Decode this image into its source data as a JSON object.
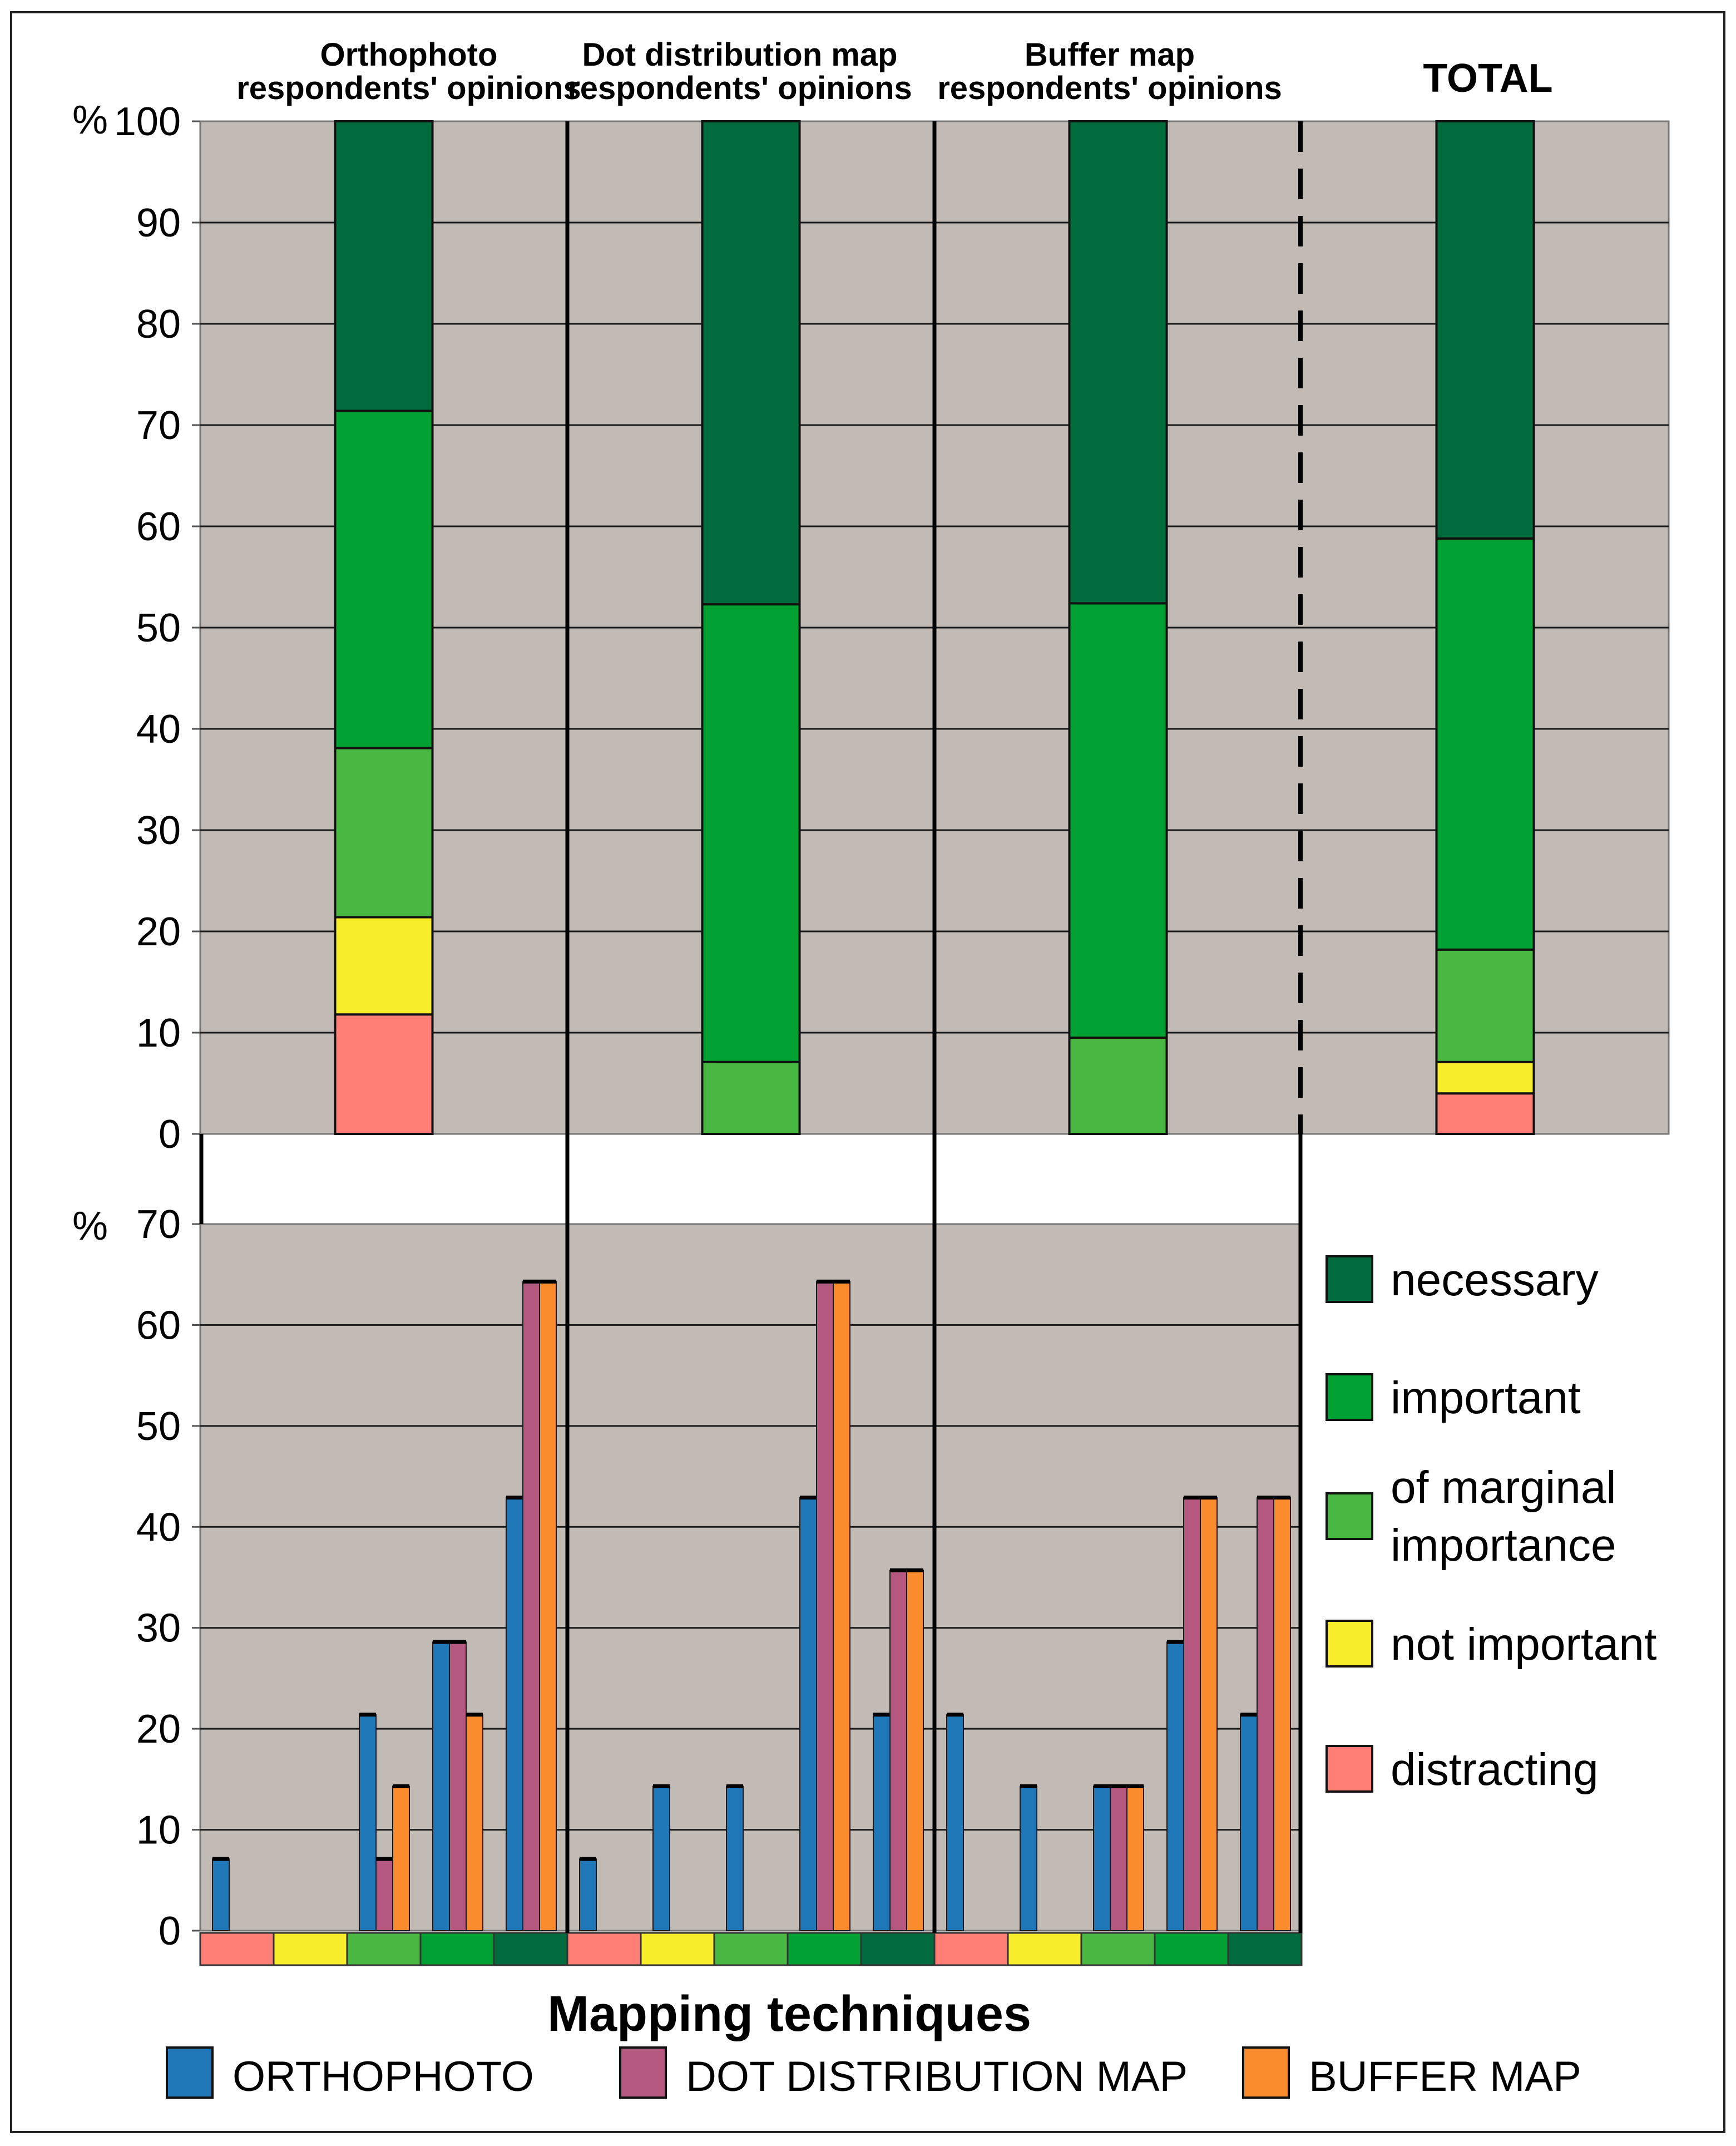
{
  "chart_data": [
    {
      "type": "bar",
      "stacked": true,
      "panel_titles": [
        "Orthophoto\nrespondents' opinions",
        "Dot distribution map\nrespondents' opinions",
        "Buffer map\nrespondents' opinions",
        "TOTAL"
      ],
      "ylabel": "%",
      "ylim": [
        0,
        100
      ],
      "yticks": [
        "0",
        "10",
        "20",
        "30",
        "40",
        "50",
        "60",
        "70",
        "80",
        "90",
        "100"
      ],
      "categories": [
        "Orthophoto",
        "Dot distribution map",
        "Buffer map",
        "TOTAL"
      ],
      "series": [
        {
          "name": "distracting",
          "color": "#ff7f77",
          "values": [
            11.8,
            0,
            0,
            4.0
          ]
        },
        {
          "name": "not important",
          "color": "#f7ed2a",
          "values": [
            9.6,
            0,
            0,
            3.1
          ]
        },
        {
          "name": "of marginal importance",
          "color": "#49b843",
          "values": [
            16.7,
            7.1,
            9.5,
            11.1
          ]
        },
        {
          "name": "important",
          "color": "#00a033",
          "values": [
            33.3,
            45.2,
            42.9,
            40.6
          ]
        },
        {
          "name": "necessary",
          "color": "#006b3c",
          "values": [
            28.6,
            47.7,
            47.6,
            41.2
          ]
        }
      ]
    },
    {
      "type": "bar",
      "ylabel": "%",
      "ylim": [
        0,
        70
      ],
      "yticks": [
        "0",
        "10",
        "20",
        "30",
        "40",
        "50",
        "60",
        "70"
      ],
      "xlabel": "Mapping techniques",
      "groups": [
        "Orthophoto",
        "Dot distribution map",
        "Buffer map"
      ],
      "categories": [
        "distracting",
        "not important",
        "of marginal importance",
        "important",
        "necessary"
      ],
      "category_colors": [
        "#ff7f77",
        "#f7ed2a",
        "#49b843",
        "#00a033",
        "#006b3c"
      ],
      "series": [
        {
          "name": "ORTHOPHOTO",
          "color": "#1f77b8",
          "values": [
            [
              7.1,
              0,
              21.4,
              28.6,
              42.9
            ],
            [
              7.1,
              14.3,
              14.3,
              42.9,
              21.4
            ],
            [
              21.4,
              14.3,
              14.3,
              28.6,
              21.4
            ]
          ]
        },
        {
          "name": "DOT DISTRIBUTION MAP",
          "color": "#b5587f",
          "values": [
            [
              0,
              0,
              7.1,
              28.6,
              64.3
            ],
            [
              0,
              0,
              0,
              64.3,
              35.7
            ],
            [
              0,
              0,
              14.3,
              42.9,
              42.9
            ]
          ]
        },
        {
          "name": "BUFFER MAP",
          "color": "#fb8c2e",
          "values": [
            [
              0,
              0,
              14.3,
              21.4,
              64.3
            ],
            [
              0,
              0,
              0,
              64.3,
              35.7
            ],
            [
              0,
              0,
              14.3,
              42.9,
              42.9
            ]
          ]
        }
      ]
    }
  ],
  "legend_opinions": [
    "necessary",
    "important",
    "of marginal\nimportance",
    "not important",
    "distracting"
  ],
  "legend_techniques": [
    "ORTHOPHOTO",
    "DOT DISTRIBUTION MAP",
    "BUFFER MAP"
  ],
  "colors": {
    "plot_bg": "#c1bab5",
    "grid": "#1a1a1a"
  }
}
